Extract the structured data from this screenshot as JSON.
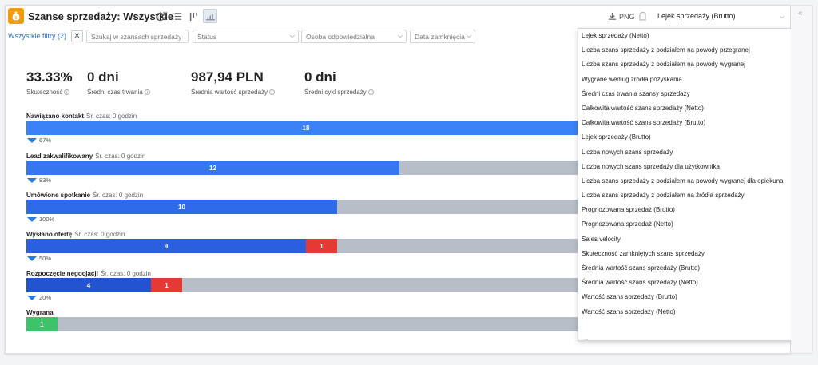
{
  "header": {
    "title": "Szanse sprzedaży: Wszystkie",
    "title_caret": "⌵",
    "png_label": "PNG",
    "report_selected": "Lejek sprzedaży (Brutto)",
    "collapse_label": "«"
  },
  "filters": {
    "all_filters_label": "Wszystkie filtry (2)",
    "clear_label": "✕",
    "search_placeholder": "Szukaj w szansach sprzedaży",
    "status_label": "Status",
    "owner_label": "Osoba odpowiedzialna",
    "close_date_label": "Data zamknięcia"
  },
  "metrics": [
    {
      "value": "33.33%",
      "label": "Skuteczność"
    },
    {
      "value": "0 dni",
      "label": "Średni czas trwania"
    },
    {
      "value": "987,94 PLN",
      "label": "Średnia wartość sprzedaży"
    },
    {
      "value": "0 dni",
      "label": "Średni cykl sprzedaży"
    }
  ],
  "funnel": {
    "avg_time_label": "Śr. czas: 0 godzin",
    "stages": [
      {
        "name": "Nawiązano kontakt",
        "show_avg": true,
        "won": 18,
        "lost": null,
        "conversion": "67%"
      },
      {
        "name": "Lead zakwalifikowany",
        "show_avg": true,
        "won": 12,
        "lost": null,
        "conversion": "83%"
      },
      {
        "name": "Umówione spotkanie",
        "show_avg": true,
        "won": 10,
        "lost": null,
        "conversion": "100%"
      },
      {
        "name": "Wysłano ofertę",
        "show_avg": true,
        "won": 9,
        "lost": 1,
        "conversion": "50%"
      },
      {
        "name": "Rozpoczęcie negocjacji",
        "show_avg": true,
        "won": 4,
        "lost": 1,
        "conversion": "20%"
      },
      {
        "name": "Wygrana",
        "show_avg": false,
        "won": 1,
        "lost": null,
        "conversion": null
      }
    ]
  },
  "dropdown": {
    "items": [
      "Lejek sprzedaży (Netto)",
      "Liczba szans sprzedaży z podziałem na powody przegranej",
      "Liczba szans sprzedaży z podziałem na powody wygranej",
      "Wygrane według źródła pozyskania",
      "Średni czas trwania szansy sprzedaży",
      "Całkowita wartość szans sprzedaży (Netto)",
      "Całkowita wartość szans sprzedaży (Brutto)",
      "Lejek sprzedaży (Brutto)",
      "Liczba nowych szans sprzedaży",
      "Liczba nowych szans sprzedaży dla użytkownika",
      "Liczba szans sprzedaży z podziałem na powody wygranej dla opiekuna",
      "Liczba szans sprzedaży z podziałem na źródła sprzedaży",
      "Prognozowana sprzedaż (Brutto)",
      "Prognozowana sprzedaż (Netto)",
      "Sales velocity",
      "Skuteczność zamkniętych szans sprzedaży",
      "Średnia wartość szans sprzedaży (Brutto)",
      "Średnia wartość szans sprzedaży (Netto)",
      "Wartość szans sprzedaży (Brutto)",
      "Wartość szans sprzedaży (Netto)"
    ],
    "more": "..."
  },
  "colors": {
    "stage_blue": [
      "#3b82f6",
      "#3477ee",
      "#2f6be6",
      "#2a60dd",
      "#2453d2"
    ],
    "won_green": "#3cc46a",
    "lost_red": "#e53935",
    "track_gray": "#b8bec7",
    "accent": "#2f6fd6"
  },
  "icons": {
    "app": "moneybag-icon",
    "refresh": "refresh-icon",
    "list": "list-view-icon",
    "chart_bars": "bar-chart-icon",
    "funnel_view": "funnel-chart-icon",
    "download": "download-icon",
    "copy": "copy-icon",
    "info": "info-icon"
  }
}
